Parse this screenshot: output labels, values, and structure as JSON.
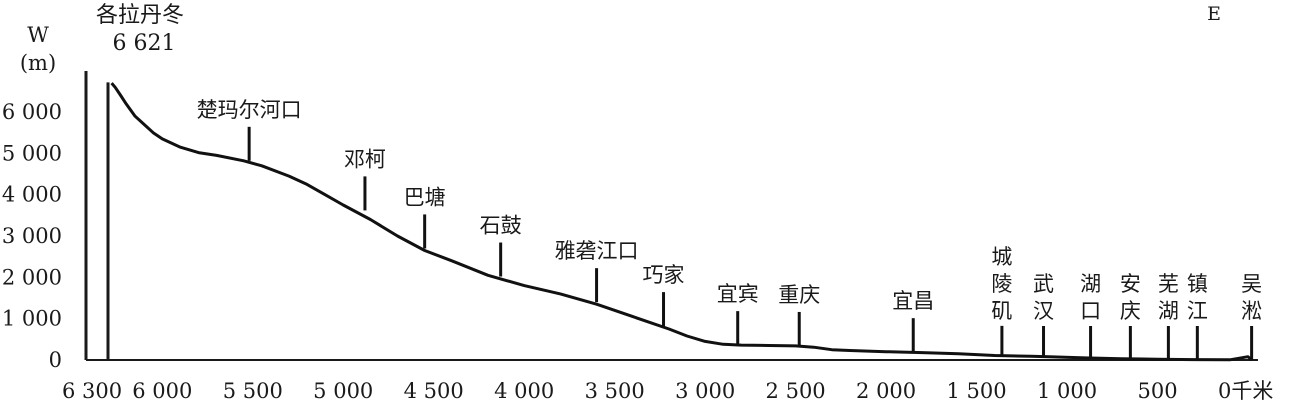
{
  "chart_data": {
    "type": "line",
    "ylabel": "W",
    "yunit": "(m)",
    "corner_label": "E",
    "x_unit": "千米",
    "xlim": [
      6300,
      -30
    ],
    "ylim": [
      0,
      6800
    ],
    "x_ticks": [
      6300,
      6000,
      5500,
      5000,
      4500,
      4000,
      3500,
      3000,
      2500,
      2000,
      1500,
      1000,
      500,
      0
    ],
    "x_tick_labels": [
      "6 300",
      "6 000",
      "5 500",
      "5 000",
      "4 500",
      "4 000",
      "3 500",
      "3 000",
      "2 500",
      "2 000",
      "1 500",
      "1 000",
      "500",
      "0"
    ],
    "y_ticks": [
      0,
      1000,
      2000,
      3000,
      4000,
      5000,
      6000
    ],
    "y_tick_labels": [
      "0",
      "1 000",
      "2 000",
      "3 000",
      "4 000",
      "5 000",
      "6 000"
    ],
    "peak": {
      "name": "各拉丹冬",
      "value_label": "6 621",
      "x": 6270,
      "y": 6621
    },
    "series": [
      {
        "x": [
          6280,
          6260,
          6230,
          6200,
          6150,
          6100,
          6050,
          6000,
          5900,
          5800,
          5700,
          5550,
          5450,
          5300,
          5200,
          5100,
          5000,
          4850,
          4700,
          4550,
          4400,
          4200,
          4000,
          3800,
          3600,
          3400,
          3200,
          3100,
          3000,
          2900,
          2800,
          2650,
          2500,
          2400,
          2300,
          2200,
          2000,
          1800,
          1600,
          1400,
          1200,
          1100,
          900,
          700,
          500,
          300,
          100,
          0,
          -20
        ],
        "y": [
          6700,
          6600,
          6400,
          6200,
          5900,
          5700,
          5500,
          5350,
          5150,
          5020,
          4950,
          4820,
          4700,
          4450,
          4250,
          4000,
          3750,
          3400,
          3000,
          2650,
          2400,
          2050,
          1800,
          1600,
          1350,
          1050,
          750,
          580,
          450,
          380,
          360,
          350,
          340,
          310,
          250,
          230,
          200,
          180,
          150,
          110,
          90,
          80,
          50,
          30,
          20,
          10,
          5,
          80,
          0
        ]
      }
    ],
    "stations": [
      {
        "name": "楚玛尔河口",
        "x": 5520,
        "y": 4820
      },
      {
        "name": "邓柯",
        "x": 4880,
        "y": 3620
      },
      {
        "name": "巴塘",
        "x": 4550,
        "y": 2700
      },
      {
        "name": "石鼓",
        "x": 4130,
        "y": 2020
      },
      {
        "name": "雅砻江口",
        "x": 3600,
        "y": 1400
      },
      {
        "name": "巧家",
        "x": 3230,
        "y": 820
      },
      {
        "name": "宜宾",
        "x": 2820,
        "y": 360
      },
      {
        "name": "重庆",
        "x": 2480,
        "y": 340
      },
      {
        "name": "宜昌",
        "x": 1850,
        "y": 190
      },
      {
        "name": "城陵矶",
        "x": 1360,
        "y": 100
      },
      {
        "name": "武汉",
        "x": 1130,
        "y": 90
      },
      {
        "name": "湖口",
        "x": 870,
        "y": 50
      },
      {
        "name": "安庆",
        "x": 650,
        "y": 30
      },
      {
        "name": "芜湖",
        "x": 440,
        "y": 20
      },
      {
        "name": "镇江",
        "x": 280,
        "y": 12
      },
      {
        "name": "吴淞",
        "x": -20,
        "y": 5
      }
    ]
  }
}
